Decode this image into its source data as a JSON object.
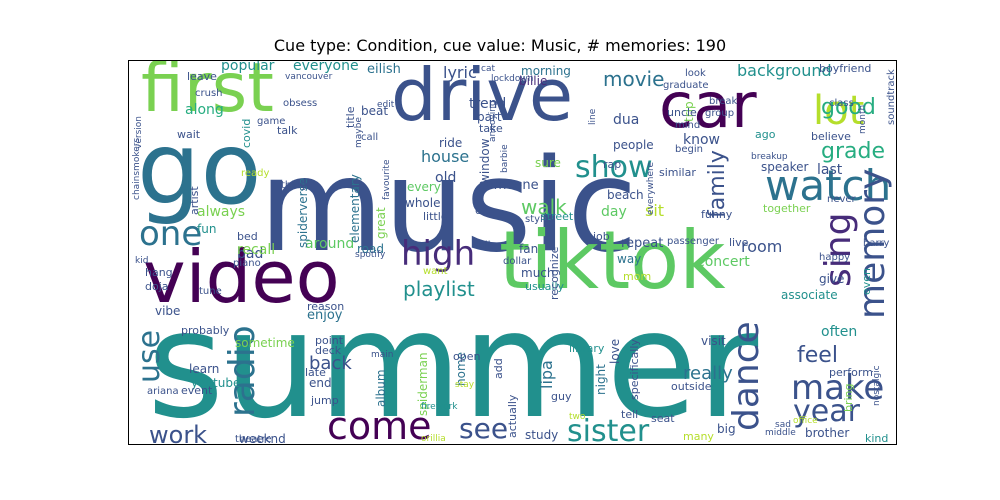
{
  "title": "Cue type: Condition, cue value: Music, # memories: 190",
  "colors": {
    "c1": "#440154",
    "c2": "#3b528b",
    "c3": "#21908d",
    "c4": "#5dc963",
    "c5": "#fde725"
  },
  "words": [
    {
      "text": "music",
      "color": "#3b528b"
    },
    {
      "text": "summer",
      "color": "#21908d"
    },
    {
      "text": "go",
      "color": "#2c728e"
    },
    {
      "text": "first",
      "color": "#7ad151"
    },
    {
      "text": "drive",
      "color": "#3b528b"
    },
    {
      "text": "car",
      "color": "#440154"
    },
    {
      "text": "video",
      "color": "#440154"
    },
    {
      "text": "tiktok",
      "color": "#5dc963"
    },
    {
      "text": "watch",
      "color": "#2c728e"
    },
    {
      "text": "lot",
      "color": "#b5de2b"
    },
    {
      "text": "show",
      "color": "#21908d"
    },
    {
      "text": "one",
      "color": "#2c728e"
    },
    {
      "text": "high",
      "color": "#472c7a"
    },
    {
      "text": "sing",
      "color": "#472c7a"
    },
    {
      "text": "memory",
      "color": "#3b528b"
    },
    {
      "text": "dance",
      "color": "#3b528b"
    },
    {
      "text": "radio",
      "color": "#2c728e"
    },
    {
      "text": "use",
      "color": "#2c728e"
    },
    {
      "text": "come",
      "color": "#440154"
    },
    {
      "text": "see",
      "color": "#3b528b"
    },
    {
      "text": "sister",
      "color": "#21908d"
    },
    {
      "text": "make",
      "color": "#3b528b"
    },
    {
      "text": "year",
      "color": "#3b528b"
    },
    {
      "text": "work",
      "color": "#3b528b"
    },
    {
      "text": "good",
      "color": "#27ad81"
    },
    {
      "text": "grade",
      "color": "#27ad81"
    },
    {
      "text": "movie",
      "color": "#2c728e"
    },
    {
      "text": "family",
      "color": "#3b528b"
    },
    {
      "text": "walk",
      "color": "#5dc963"
    },
    {
      "text": "playlist",
      "color": "#21908d"
    },
    {
      "text": "feel",
      "color": "#3b528b"
    },
    {
      "text": "really",
      "color": "#2c728e"
    },
    {
      "text": "back",
      "color": "#3b528b"
    },
    {
      "text": "background",
      "color": "#21908d"
    },
    {
      "text": "popular",
      "color": "#21908d"
    },
    {
      "text": "everyone",
      "color": "#21908d"
    },
    {
      "text": "eilish",
      "color": "#2c728e"
    },
    {
      "text": "lyric",
      "color": "#3b528b"
    },
    {
      "text": "morning",
      "color": "#2c728e"
    },
    {
      "text": "billie",
      "color": "#472c7a"
    },
    {
      "text": "along",
      "color": "#27ad81"
    },
    {
      "text": "trend",
      "color": "#3b528b"
    },
    {
      "text": "house",
      "color": "#2c728e"
    },
    {
      "text": "old",
      "color": "#3b528b"
    },
    {
      "text": "always",
      "color": "#7ad151"
    },
    {
      "text": "around",
      "color": "#5dc963"
    },
    {
      "text": "room",
      "color": "#3b528b"
    },
    {
      "text": "concert",
      "color": "#5dc963"
    },
    {
      "text": "repeat",
      "color": "#3b528b"
    },
    {
      "text": "enjoy",
      "color": "#2c728e"
    },
    {
      "text": "often",
      "color": "#21908d"
    },
    {
      "text": "give",
      "color": "#3b528b"
    },
    {
      "text": "associate",
      "color": "#21908d"
    },
    {
      "text": "bad",
      "color": "#3b528b"
    },
    {
      "text": "recall",
      "color": "#7ad151"
    },
    {
      "text": "road",
      "color": "#2c728e"
    },
    {
      "text": "day",
      "color": "#5dc963"
    },
    {
      "text": "sit",
      "color": "#b5de2b"
    },
    {
      "text": "fan",
      "color": "#3b528b"
    },
    {
      "text": "much",
      "color": "#3b528b"
    },
    {
      "text": "way",
      "color": "#2c728e"
    },
    {
      "text": "love",
      "color": "#3b528b"
    },
    {
      "text": "night",
      "color": "#2c728e"
    },
    {
      "text": "visit",
      "color": "#3b528b"
    },
    {
      "text": "last",
      "color": "#3b528b"
    },
    {
      "text": "speaker",
      "color": "#3b528b"
    },
    {
      "text": "know",
      "color": "#3b528b"
    },
    {
      "text": "someone",
      "color": "#3b528b"
    },
    {
      "text": "elementary",
      "color": "#2c728e"
    },
    {
      "text": "spiderverse",
      "color": "#2c728e"
    },
    {
      "text": "great",
      "color": "#7ad151"
    },
    {
      "text": "youtube",
      "color": "#21908d"
    },
    {
      "text": "learn",
      "color": "#3b528b"
    },
    {
      "text": "end",
      "color": "#3b528b"
    },
    {
      "text": "weeknd",
      "color": "#3b528b"
    },
    {
      "text": "album",
      "color": "#2c728e"
    },
    {
      "text": "home",
      "color": "#2c728e"
    },
    {
      "text": "study",
      "color": "#3b528b"
    },
    {
      "text": "brother",
      "color": "#3b528b"
    },
    {
      "text": "big",
      "color": "#3b528b"
    },
    {
      "text": "spiderman",
      "color": "#7ad151"
    },
    {
      "text": "lipa",
      "color": "#2c728e"
    },
    {
      "text": "dua",
      "color": "#3b528b"
    },
    {
      "text": "perform",
      "color": "#3b528b"
    },
    {
      "text": "bring",
      "color": "#7ad151"
    },
    {
      "text": "vibe",
      "color": "#3b528b"
    },
    {
      "text": "fun",
      "color": "#21908d"
    },
    {
      "text": "sometime",
      "color": "#7ad151"
    },
    {
      "text": "artist",
      "color": "#3b528b"
    },
    {
      "text": "covid",
      "color": "#21908d"
    },
    {
      "text": "boyfriend",
      "color": "#3b528b"
    },
    {
      "text": "soundtrack",
      "color": "#3b528b"
    },
    {
      "text": "believe",
      "color": "#3b528b"
    },
    {
      "text": "together",
      "color": "#7ad151"
    },
    {
      "text": "every",
      "color": "#5dc963"
    },
    {
      "text": "whole",
      "color": "#3b528b"
    },
    {
      "text": "little",
      "color": "#3b528b"
    },
    {
      "text": "beach",
      "color": "#3b528b"
    },
    {
      "text": "similar",
      "color": "#3b528b"
    },
    {
      "text": "people",
      "color": "#3b528b"
    },
    {
      "text": "trip",
      "color": "#7ad151"
    },
    {
      "text": "ago",
      "color": "#21908d"
    },
    {
      "text": "beat",
      "color": "#3b528b"
    },
    {
      "text": "window",
      "color": "#3b528b"
    },
    {
      "text": "part",
      "color": "#3b528b"
    },
    {
      "text": "take",
      "color": "#3b528b"
    },
    {
      "text": "ride",
      "color": "#3b528b"
    },
    {
      "text": "sure",
      "color": "#7ad151"
    },
    {
      "text": "job",
      "color": "#3b528b"
    },
    {
      "text": "usually",
      "color": "#21908d"
    },
    {
      "text": "recognize",
      "color": "#3b528b"
    },
    {
      "text": "specifically",
      "color": "#3b528b"
    },
    {
      "text": "outside",
      "color": "#3b528b"
    },
    {
      "text": "library",
      "color": "#21908d"
    },
    {
      "text": "funny",
      "color": "#3b528b"
    },
    {
      "text": "street",
      "color": "#21908d"
    },
    {
      "text": "mom",
      "color": "#b5de2b"
    },
    {
      "text": "tell",
      "color": "#3b528b"
    },
    {
      "text": "seat",
      "color": "#3b528b"
    },
    {
      "text": "kind",
      "color": "#21908d"
    },
    {
      "text": "many",
      "color": "#b5de2b"
    },
    {
      "text": "add",
      "color": "#3b528b"
    },
    {
      "text": "open",
      "color": "#3b528b"
    },
    {
      "text": "actually",
      "color": "#3b528b"
    },
    {
      "text": "guy",
      "color": "#3b528b"
    },
    {
      "text": "theatre",
      "color": "#3b528b"
    },
    {
      "text": "late",
      "color": "#3b528b"
    },
    {
      "text": "ariana",
      "color": "#3b528b"
    },
    {
      "text": "point",
      "color": "#3b528b"
    },
    {
      "text": "deck",
      "color": "#3b528b"
    },
    {
      "text": "probably",
      "color": "#3b528b"
    },
    {
      "text": "reason",
      "color": "#3b528b"
    },
    {
      "text": "event",
      "color": "#3b528b"
    },
    {
      "text": "jump",
      "color": "#3b528b"
    },
    {
      "text": "hang",
      "color": "#3b528b"
    },
    {
      "text": "doja",
      "color": "#3b528b"
    },
    {
      "text": "kid",
      "color": "#3b528b"
    },
    {
      "text": "piano",
      "color": "#3b528b"
    },
    {
      "text": "bed",
      "color": "#3b528b"
    },
    {
      "text": "tune",
      "color": "#3b528b"
    },
    {
      "text": "want",
      "color": "#b5de2b"
    },
    {
      "text": "still",
      "color": "#3b528b"
    },
    {
      "text": "dollar",
      "color": "#3b528b"
    },
    {
      "text": "passenger",
      "color": "#3b528b"
    },
    {
      "text": "live",
      "color": "#3b528b"
    },
    {
      "text": "happy",
      "color": "#3b528b"
    },
    {
      "text": "harry",
      "color": "#3b528b"
    },
    {
      "text": "even",
      "color": "#21908d"
    },
    {
      "text": "nostalgic",
      "color": "#3b528b"
    },
    {
      "text": "leave",
      "color": "#3b528b"
    },
    {
      "text": "crush",
      "color": "#3b528b"
    },
    {
      "text": "vancouver",
      "color": "#3b528b"
    },
    {
      "text": "obsess",
      "color": "#3b528b"
    },
    {
      "text": "game",
      "color": "#3b528b"
    },
    {
      "text": "talk",
      "color": "#3b528b"
    },
    {
      "text": "wait",
      "color": "#3b528b"
    },
    {
      "text": "chainsmokers",
      "color": "#3b528b"
    },
    {
      "text": "version",
      "color": "#3b528b"
    },
    {
      "text": "title",
      "color": "#3b528b"
    },
    {
      "text": "maybe",
      "color": "#3b528b"
    },
    {
      "text": "edit",
      "color": "#3b528b"
    },
    {
      "text": "call",
      "color": "#3b528b"
    },
    {
      "text": "cat",
      "color": "#3b528b"
    },
    {
      "text": "lockdown",
      "color": "#3b528b"
    },
    {
      "text": "line",
      "color": "#3b528b"
    },
    {
      "text": "graduate",
      "color": "#3b528b"
    },
    {
      "text": "uncle",
      "color": "#3b528b"
    },
    {
      "text": "mind",
      "color": "#3b528b"
    },
    {
      "text": "look",
      "color": "#3b528b"
    },
    {
      "text": "break",
      "color": "#3b528b"
    },
    {
      "text": "group",
      "color": "#3b528b"
    },
    {
      "text": "class",
      "color": "#3b528b"
    },
    {
      "text": "month",
      "color": "#3b528b"
    },
    {
      "text": "never",
      "color": "#3b528b"
    },
    {
      "text": "begin",
      "color": "#3b528b"
    },
    {
      "text": "breakup",
      "color": "#3b528b"
    },
    {
      "text": "everywhere",
      "color": "#3b528b"
    },
    {
      "text": "ready",
      "color": "#b5de2b"
    },
    {
      "text": "thing",
      "color": "#3b528b"
    },
    {
      "text": "spotify",
      "color": "#3b528b"
    },
    {
      "text": "favourite",
      "color": "#3b528b"
    },
    {
      "text": "rap",
      "color": "#3b528b"
    },
    {
      "text": "ex",
      "color": "#3b528b"
    },
    {
      "text": "annoying",
      "color": "#3b528b"
    },
    {
      "text": "barbie",
      "color": "#3b528b"
    },
    {
      "text": "two",
      "color": "#b5de2b"
    },
    {
      "text": "stay",
      "color": "#b5de2b"
    },
    {
      "text": "orillia",
      "color": "#b5de2b"
    },
    {
      "text": "firework",
      "color": "#21908d"
    },
    {
      "text": "styles",
      "color": "#3b528b"
    },
    {
      "text": "office",
      "color": "#b5de2b"
    },
    {
      "text": "middle",
      "color": "#3b528b"
    },
    {
      "text": "sad",
      "color": "#3b528b"
    },
    {
      "text": "main",
      "color": "#3b528b"
    }
  ]
}
